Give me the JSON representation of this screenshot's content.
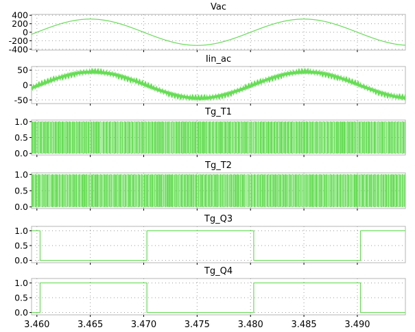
{
  "colors": {
    "trace": "#66dd55",
    "frame": "#b4b4b4",
    "grid": "#9a9a9a",
    "background": "#ffffff"
  },
  "chart_data": {
    "type": "line",
    "x_tick_labels": [
      "3.460",
      "3.465",
      "3.470",
      "3.475",
      "3.480",
      "3.485",
      "3.490"
    ],
    "xlim": [
      3.4595,
      3.4945
    ],
    "grid": true,
    "panels": [
      {
        "title": "Vac",
        "kind": "sine",
        "amplitude": 310,
        "period": 0.02,
        "peak_at": 3.465,
        "ylim": [
          -420,
          420
        ],
        "y_ticks": [
          400,
          200,
          0,
          -200,
          -400
        ],
        "y_tick_labels": [
          "400",
          "200",
          "0",
          "-200",
          "-400"
        ]
      },
      {
        "title": "Iin_ac",
        "kind": "sine_ripple",
        "amplitude": 44,
        "ripple": 3,
        "period": 0.02,
        "peak_at": 3.4652,
        "ylim": [
          -62,
          62
        ],
        "y_ticks": [
          50,
          0,
          -50
        ],
        "y_tick_labels": [
          "50",
          "0",
          "-50"
        ]
      },
      {
        "title": "Tg_T1",
        "kind": "pwm",
        "ylim": [
          -0.05,
          1.05
        ],
        "y_ticks": [
          1.0,
          0.5,
          0.0
        ],
        "y_tick_labels": [
          "1.0",
          "0.5",
          "0.0"
        ]
      },
      {
        "title": "Tg_T2",
        "kind": "pwm",
        "ylim": [
          -0.05,
          1.05
        ],
        "y_ticks": [
          1.0,
          0.5,
          0.0
        ],
        "y_tick_labels": [
          "1.0",
          "0.5",
          "0.0"
        ]
      },
      {
        "title": "Tg_Q3",
        "kind": "square",
        "x": [
          3.4595,
          3.4603,
          3.4603,
          3.4703,
          3.4703,
          3.4803,
          3.4803,
          3.4903,
          3.4903,
          3.4945
        ],
        "y": [
          1,
          1,
          0,
          0,
          1,
          1,
          0,
          0,
          1,
          1
        ],
        "ylim": [
          -0.08,
          1.15
        ],
        "y_ticks": [
          1.0,
          0.5,
          0.0
        ],
        "y_tick_labels": [
          "1.0",
          "0.5",
          "0.0"
        ]
      },
      {
        "title": "Tg_Q4",
        "kind": "square",
        "x": [
          3.4595,
          3.4603,
          3.4603,
          3.4703,
          3.4703,
          3.4803,
          3.4803,
          3.4903,
          3.4903,
          3.4945
        ],
        "y": [
          0,
          0,
          1,
          1,
          0,
          0,
          1,
          1,
          0,
          0
        ],
        "ylim": [
          -0.08,
          1.15
        ],
        "y_ticks": [
          1.0,
          0.5,
          0.0
        ],
        "y_tick_labels": [
          "1.0",
          "0.5",
          "0.0"
        ]
      }
    ]
  }
}
